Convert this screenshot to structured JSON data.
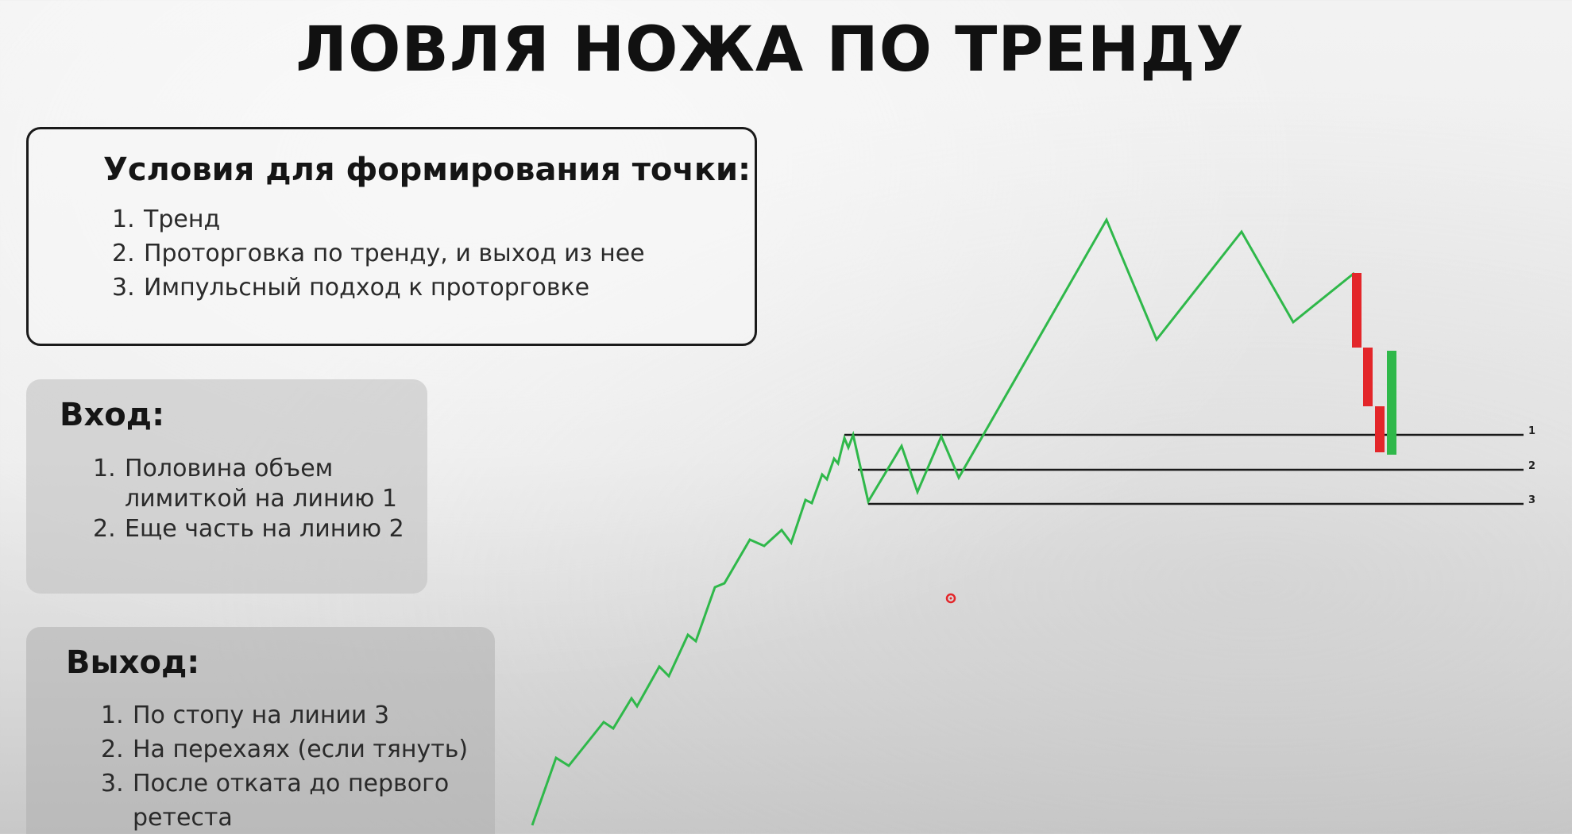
{
  "title": "ЛОВЛЯ НОЖА ПО ТРЕНДУ",
  "conditions": {
    "heading": "Условия для формирования точки:",
    "items": [
      {
        "num": "1.",
        "text": "Тренд"
      },
      {
        "num": "2.",
        "text": "Проторговка по тренду, и выход из нее"
      },
      {
        "num": "3.",
        "text": "Импульсный подход к проторговке"
      }
    ]
  },
  "entry": {
    "heading": "Вход:",
    "items": [
      {
        "num": "1.",
        "line1": "Половина объем",
        "line2": "лимиткой на линию 1"
      },
      {
        "num": "2.",
        "text": "Еще часть на линию 2"
      }
    ]
  },
  "exit": {
    "heading": "Выход:",
    "items": [
      {
        "num": "1.",
        "text": "По стопу на линии 3"
      },
      {
        "num": "2.",
        "text": "На перехаях (если тянуть)"
      },
      {
        "num": "3.",
        "line1": "После отката до первого",
        "line2": "ретеста"
      }
    ]
  },
  "levels": [
    {
      "label": "1"
    },
    {
      "label": "2"
    },
    {
      "label": "3"
    }
  ],
  "colors": {
    "trend_line": "#2fb84a",
    "candle_down": "#e3262a",
    "candle_up": "#2fb84a",
    "level_line": "#1a1a1a",
    "cursor": "#e3262a"
  }
}
